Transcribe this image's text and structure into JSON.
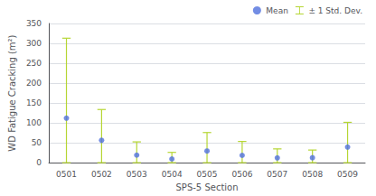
{
  "chart_data": {
    "type": "scatter",
    "xlabel": "SPS-5 Section",
    "ylabel": "WD Fatigue Cracking (m²)",
    "categories": [
      "0501",
      "0502",
      "0503",
      "0504",
      "0505",
      "0506",
      "0507",
      "0508",
      "0509"
    ],
    "series": [
      {
        "name": "Mean",
        "type": "scatter",
        "marker": "circle",
        "values": [
          111.96,
          56.17,
          18.97,
          9.29,
          29.29,
          18.38,
          11.94,
          12.38,
          39.22
        ]
      },
      {
        "name": "± 1 Std. Dev.",
        "type": "errorbar",
        "lows": [
          0.0,
          0.0,
          0.0,
          0.0,
          0.0,
          0.0,
          0.0,
          0.0,
          0.0
        ],
        "highs": [
          313.0,
          133.67,
          52.3,
          25.88,
          75.75,
          53.36,
          34.64,
          31.78,
          101.43
        ]
      }
    ],
    "ylim": [
      0,
      350
    ],
    "yticks": [
      0,
      50,
      100,
      150,
      200,
      250,
      300,
      350
    ],
    "grid": true,
    "legend": "upper right"
  }
}
